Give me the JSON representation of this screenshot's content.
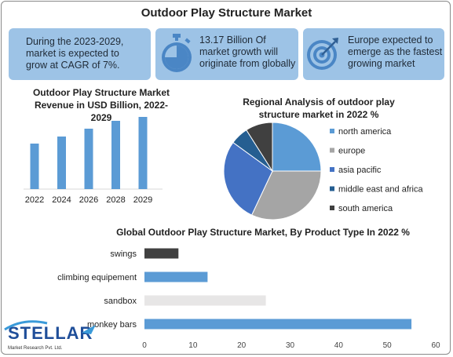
{
  "header": {
    "title": "Outdoor Play Structure Market"
  },
  "cards": [
    {
      "line1": "During the 2023-2029,",
      "line2": "market is expected to",
      "line3": "grow at CAGR of 7%.",
      "icon": "none"
    },
    {
      "line1": "13.17 Billion Of",
      "line2": "market growth will",
      "line3": "originate from globally",
      "icon": "stopwatch-icon"
    },
    {
      "line1": "Europe expected to",
      "line2": "emerge as the fastest",
      "line3": "growing market",
      "icon": "target-icon"
    }
  ],
  "colors": {
    "card_bg": "#9dc3e6",
    "bar_blue": "#5b9bd5",
    "north_america": "#5b9bd5",
    "europe": "#a5a5a5",
    "asia_pacific": "#4472c4",
    "middle_east_africa": "#255e91",
    "south_america": "#404040",
    "swings": "#404040",
    "sandbox": "#e7e6e6"
  },
  "logo": {
    "brand": "STELLAR",
    "tagline": "Market Research Pvt. Ltd."
  },
  "chart_data": [
    {
      "type": "bar",
      "title_line1": "Outdoor Play Structure Market",
      "title_line2": "Revenue in USD Billion, 2022-",
      "title_line3": "2029",
      "categories": [
        "2022",
        "2024",
        "2026",
        "2028",
        "2029"
      ],
      "values": [
        58,
        67,
        77,
        87,
        92
      ],
      "ylim": [
        0,
        100
      ],
      "grid": false
    },
    {
      "type": "pie",
      "title_line1": "Regional Analysis of outdoor play",
      "title_line2": "structure market in 2022 %",
      "legend": "right",
      "slices": [
        {
          "label": "north america",
          "value": 25
        },
        {
          "label": "europe",
          "value": 32
        },
        {
          "label": "asia pacific",
          "value": 28
        },
        {
          "label": "middle east and africa",
          "value": 6
        },
        {
          "label": "south america",
          "value": 9
        }
      ]
    },
    {
      "type": "bar",
      "orientation": "horizontal",
      "title": "Global Outdoor Play Structure Market, By Product Type In 2022 %",
      "categories": [
        "swings",
        "climbing equipement",
        "sandbox",
        "monkey bars"
      ],
      "values": [
        7,
        13,
        25,
        55
      ],
      "xlim": [
        0,
        60
      ],
      "xticks": [
        "0",
        "10",
        "20",
        "30",
        "40",
        "50",
        "60"
      ],
      "grid": false
    }
  ]
}
